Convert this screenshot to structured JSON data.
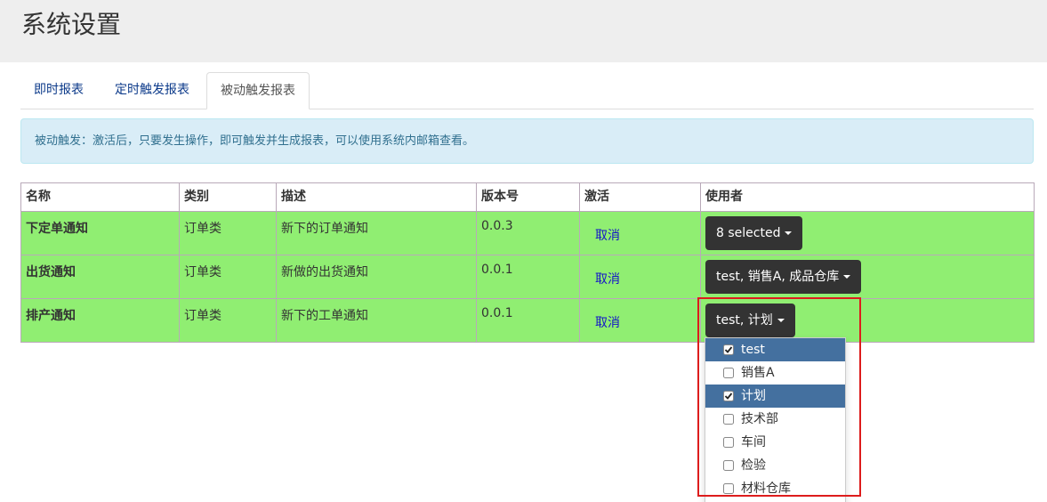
{
  "header": {
    "title": "系统设置"
  },
  "tabs": [
    {
      "label": "即时报表",
      "active": false
    },
    {
      "label": "定时触发报表",
      "active": false
    },
    {
      "label": "被动触发报表",
      "active": true
    }
  ],
  "alert": "被动触发：激活后，只要发生操作，即可触发并生成报表，可以使用系统内邮箱查看。",
  "table": {
    "headers": [
      "名称",
      "类别",
      "描述",
      "版本号",
      "激活",
      "使用者"
    ],
    "rows": [
      [
        "下定单通知",
        "订单类",
        "新下的订单通知",
        "0.0.3",
        "取消",
        "8 selected"
      ],
      [
        "出货通知",
        "订单类",
        "新做的出货通知",
        "0.0.1",
        "取消",
        "test, 销售A, 成品仓库"
      ],
      [
        "排产通知",
        "订单类",
        "新下的工单通知",
        "0.0.1",
        "取消",
        "test, 计划"
      ]
    ]
  },
  "dropdown": {
    "options": [
      {
        "label": "test",
        "checked": true
      },
      {
        "label": "销售A",
        "checked": false
      },
      {
        "label": "计划",
        "checked": true
      },
      {
        "label": "技术部",
        "checked": false
      },
      {
        "label": "车间",
        "checked": false
      },
      {
        "label": "检验",
        "checked": false
      },
      {
        "label": "材料仓库",
        "checked": false
      }
    ]
  }
}
